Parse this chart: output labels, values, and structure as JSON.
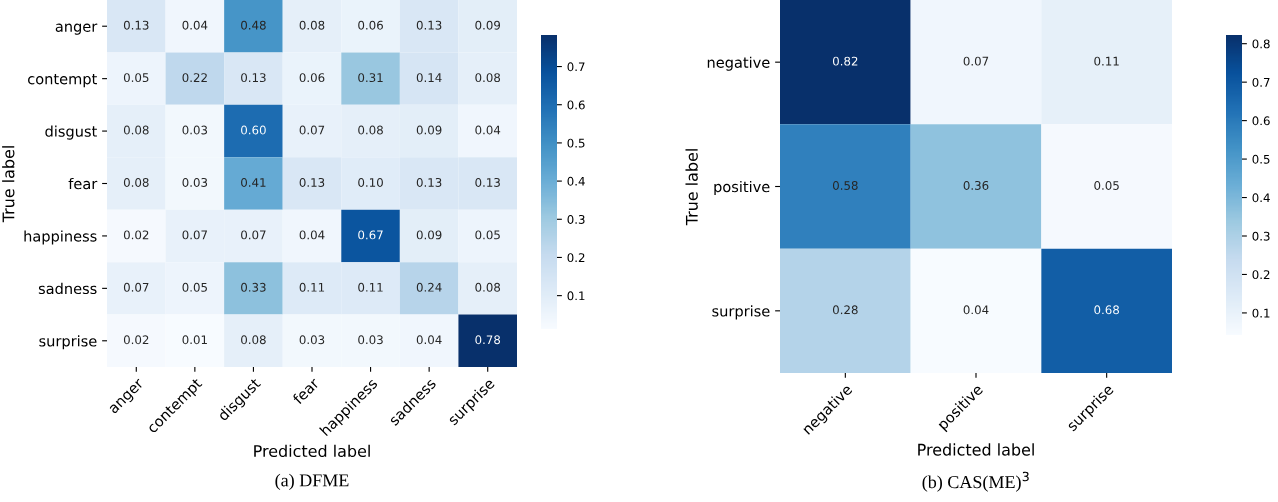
{
  "chart_data": [
    {
      "type": "heatmap",
      "title": "(a) DFME",
      "xlabel": "Predicted label",
      "ylabel": "True label",
      "categories": [
        "anger",
        "contempt",
        "disgust",
        "fear",
        "happiness",
        "sadness",
        "surprise"
      ],
      "y_categories": [
        "anger",
        "contempt",
        "disgust",
        "fear",
        "happiness",
        "sadness",
        "surprise"
      ],
      "cells": [
        [
          0.13,
          0.04,
          0.48,
          0.08,
          0.06,
          0.13,
          0.09
        ],
        [
          0.05,
          0.22,
          0.13,
          0.06,
          0.31,
          0.14,
          0.08
        ],
        [
          0.08,
          0.03,
          0.6,
          0.07,
          0.08,
          0.09,
          0.04
        ],
        [
          0.08,
          0.03,
          0.41,
          0.13,
          0.1,
          0.13,
          0.13
        ],
        [
          0.02,
          0.07,
          0.07,
          0.04,
          0.67,
          0.09,
          0.05
        ],
        [
          0.07,
          0.05,
          0.33,
          0.11,
          0.11,
          0.24,
          0.08
        ],
        [
          0.02,
          0.01,
          0.08,
          0.03,
          0.03,
          0.04,
          0.78
        ]
      ],
      "cell_labels": [
        [
          "0.13",
          "0.04",
          "0.48",
          "0.08",
          "0.06",
          "0.13",
          "0.09"
        ],
        [
          "0.05",
          "0.22",
          "0.13",
          "0.06",
          "0.31",
          "0.14",
          "0.08"
        ],
        [
          "0.08",
          "0.03",
          "0.60",
          "0.07",
          "0.08",
          "0.09",
          "0.04"
        ],
        [
          "0.08",
          "0.03",
          "0.41",
          "0.13",
          "0.10",
          "0.13",
          "0.13"
        ],
        [
          "0.02",
          "0.07",
          "0.07",
          "0.04",
          "0.67",
          "0.09",
          "0.05"
        ],
        [
          "0.07",
          "0.05",
          "0.33",
          "0.11",
          "0.11",
          "0.24",
          "0.08"
        ],
        [
          "0.02",
          "0.01",
          "0.08",
          "0.03",
          "0.03",
          "0.04",
          "0.78"
        ]
      ],
      "data_labels": true,
      "clim": [
        0.01,
        0.78
      ],
      "cticks": [
        0.1,
        0.2,
        0.3,
        0.4,
        0.5,
        0.6,
        0.7
      ]
    },
    {
      "type": "heatmap",
      "title": "(b) CAS(ME)$^{3}$",
      "xlabel": "Predicted label",
      "ylabel": "True label",
      "categories": [
        "negative",
        "positive",
        "surprise"
      ],
      "y_categories": [
        "negative",
        "positive",
        "surprise"
      ],
      "cells": [
        [
          0.82,
          0.07,
          0.11
        ],
        [
          0.58,
          0.36,
          0.05
        ],
        [
          0.28,
          0.04,
          0.68
        ]
      ],
      "data_labels": true,
      "clim": [
        0.04,
        0.82
      ],
      "cticks": [
        0.1,
        0.2,
        0.3,
        0.4,
        0.5,
        0.6,
        0.7,
        0.8
      ]
    }
  ]
}
